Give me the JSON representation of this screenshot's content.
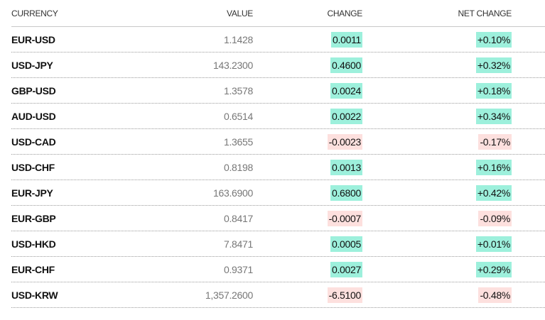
{
  "columns": {
    "currency": "CURRENCY",
    "value": "VALUE",
    "change": "CHANGE",
    "net_change": "NET CHANGE"
  },
  "colors": {
    "positive": "#9df0dc",
    "negative": "#fde0de"
  },
  "rows": [
    {
      "currency": "EUR-USD",
      "value": "1.1428",
      "change": "0.0011",
      "net_change": "+0.10%",
      "direction": "up"
    },
    {
      "currency": "USD-JPY",
      "value": "143.2300",
      "change": "0.4600",
      "net_change": "+0.32%",
      "direction": "up"
    },
    {
      "currency": "GBP-USD",
      "value": "1.3578",
      "change": "0.0024",
      "net_change": "+0.18%",
      "direction": "up"
    },
    {
      "currency": "AUD-USD",
      "value": "0.6514",
      "change": "0.0022",
      "net_change": "+0.34%",
      "direction": "up"
    },
    {
      "currency": "USD-CAD",
      "value": "1.3655",
      "change": "-0.0023",
      "net_change": "-0.17%",
      "direction": "down"
    },
    {
      "currency": "USD-CHF",
      "value": "0.8198",
      "change": "0.0013",
      "net_change": "+0.16%",
      "direction": "up"
    },
    {
      "currency": "EUR-JPY",
      "value": "163.6900",
      "change": "0.6800",
      "net_change": "+0.42%",
      "direction": "up"
    },
    {
      "currency": "EUR-GBP",
      "value": "0.8417",
      "change": "-0.0007",
      "net_change": "-0.09%",
      "direction": "down"
    },
    {
      "currency": "USD-HKD",
      "value": "7.8471",
      "change": "0.0005",
      "net_change": "+0.01%",
      "direction": "up"
    },
    {
      "currency": "EUR-CHF",
      "value": "0.9371",
      "change": "0.0027",
      "net_change": "+0.29%",
      "direction": "up"
    },
    {
      "currency": "USD-KRW",
      "value": "1,357.2600",
      "change": "-6.5100",
      "net_change": "-0.48%",
      "direction": "down"
    }
  ]
}
